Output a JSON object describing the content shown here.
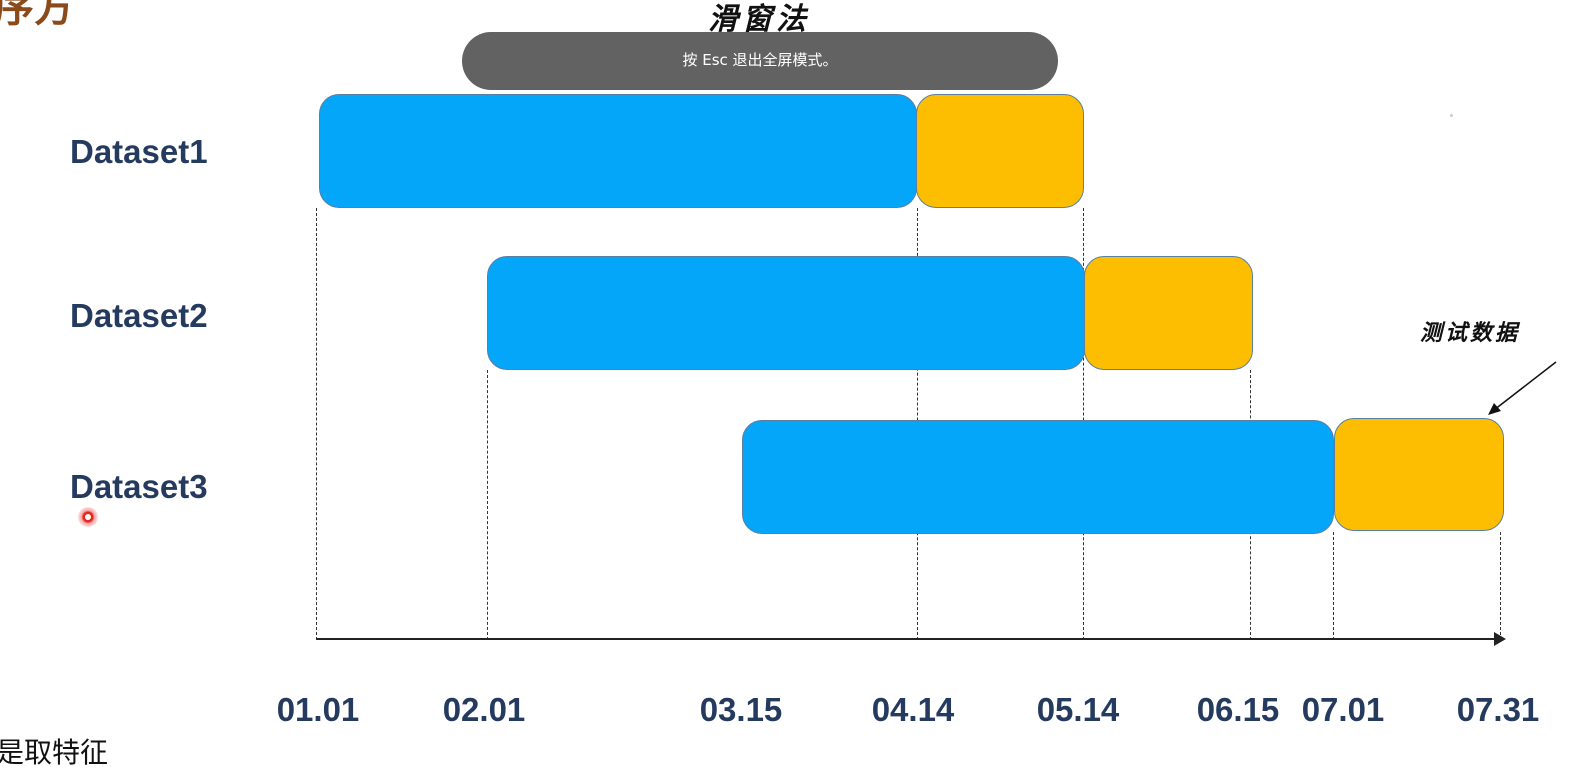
{
  "page": {
    "corner_title": "序方",
    "title": "滑窗法",
    "fullscreen_notice": "按 Esc 退出全屏模式。",
    "annotation": "测试数据",
    "bottom_text": "是取特征"
  },
  "colors": {
    "train": "#04a6fa",
    "test": "#fdbe02",
    "label_text": "#243a5e"
  },
  "timeline": {
    "ticks": [
      "01.01",
      "02.01",
      "03.15",
      "04.14",
      "05.14",
      "06.15",
      "07.01",
      "07.31"
    ]
  },
  "datasets": [
    {
      "label": "Dataset1",
      "train_start": "01.01",
      "train_end": "04.14",
      "test_start": "04.14",
      "test_end": "05.14"
    },
    {
      "label": "Dataset2",
      "train_start": "02.01",
      "train_end": "05.14",
      "test_start": "05.14",
      "test_end": "06.15"
    },
    {
      "label": "Dataset3",
      "train_start": "03.15",
      "train_end": "07.01",
      "test_start": "07.01",
      "test_end": "07.31"
    }
  ]
}
